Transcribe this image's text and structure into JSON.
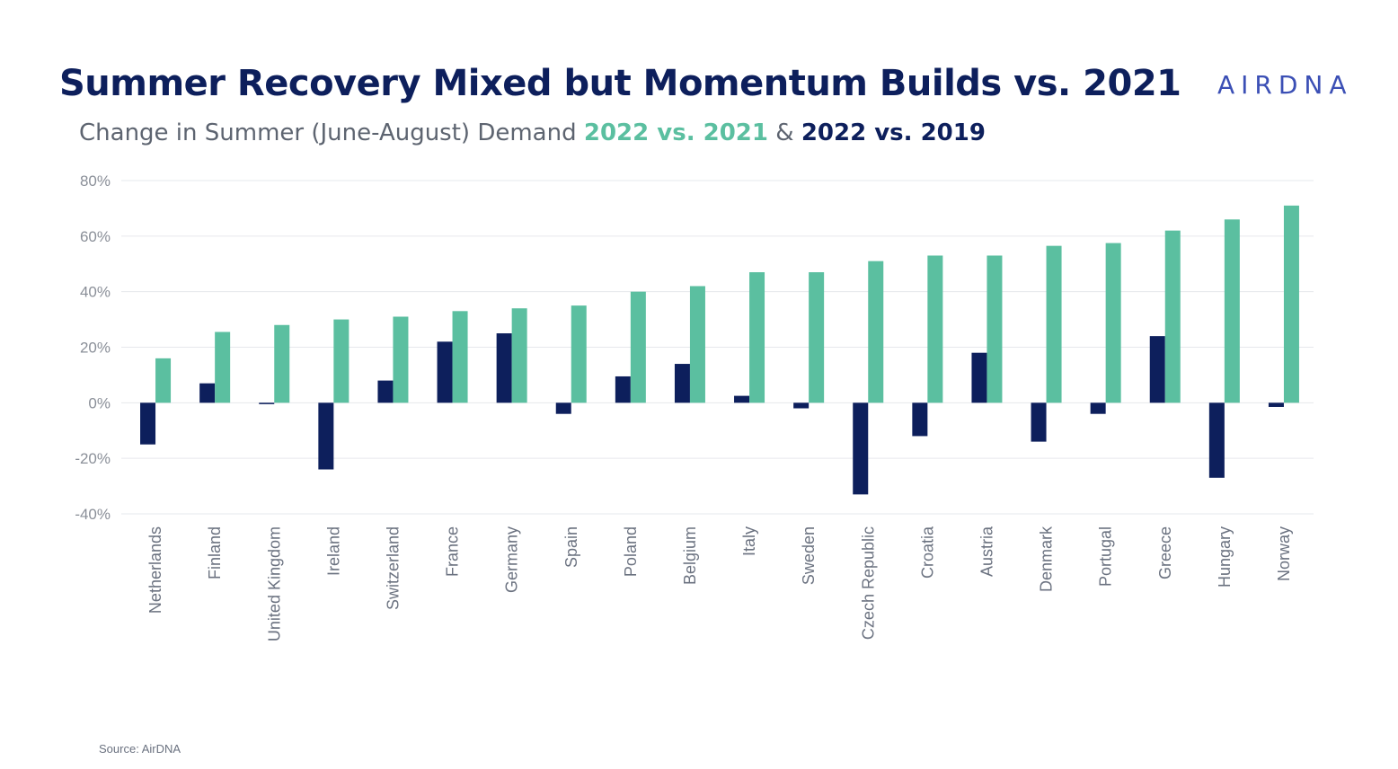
{
  "title": "Summer Recovery Mixed but Momentum Builds vs. 2021",
  "logo_text": "AIRDNA",
  "subtitle": {
    "prefix": "Change in Summer (June-August) Demand ",
    "series1": "2022 vs. 2021",
    "joiner": " & ",
    "series2": "2022 vs. 2019"
  },
  "source": "Source: AirDNA",
  "colors": {
    "series_2022_vs_2021": "#5bbfa0",
    "series_2022_vs_2019": "#0d1f5c",
    "gridline": "#e6e8ec",
    "tick_text": "#8a8f98"
  },
  "chart_data": {
    "type": "bar",
    "categories": [
      "Netherlands",
      "Finland",
      "United Kingdom",
      "Ireland",
      "Switzerland",
      "France",
      "Germany",
      "Spain",
      "Poland",
      "Belgium",
      "Italy",
      "Sweden",
      "Czech Republic",
      "Croatia",
      "Austria",
      "Denmark",
      "Portugal",
      "Greece",
      "Hungary",
      "Norway"
    ],
    "series": [
      {
        "name": "2022 vs. 2019",
        "values": [
          -15,
          7,
          -0.5,
          -24,
          8,
          22,
          25,
          -4,
          9.5,
          14,
          2.5,
          -2,
          -33,
          -12,
          18,
          -14,
          -4,
          24,
          -27,
          -1.5
        ]
      },
      {
        "name": "2022 vs. 2021",
        "values": [
          16,
          25.5,
          28,
          30,
          31,
          33,
          34,
          35,
          40,
          42,
          47,
          47,
          51,
          53,
          53,
          56.5,
          57.5,
          62,
          66,
          71
        ]
      }
    ],
    "y_ticks": [
      "80%",
      "60%",
      "40%",
      "20%",
      "0%",
      "-20%",
      "-40%"
    ],
    "ylim": [
      -40,
      80
    ],
    "grid": true,
    "legend": "none"
  }
}
